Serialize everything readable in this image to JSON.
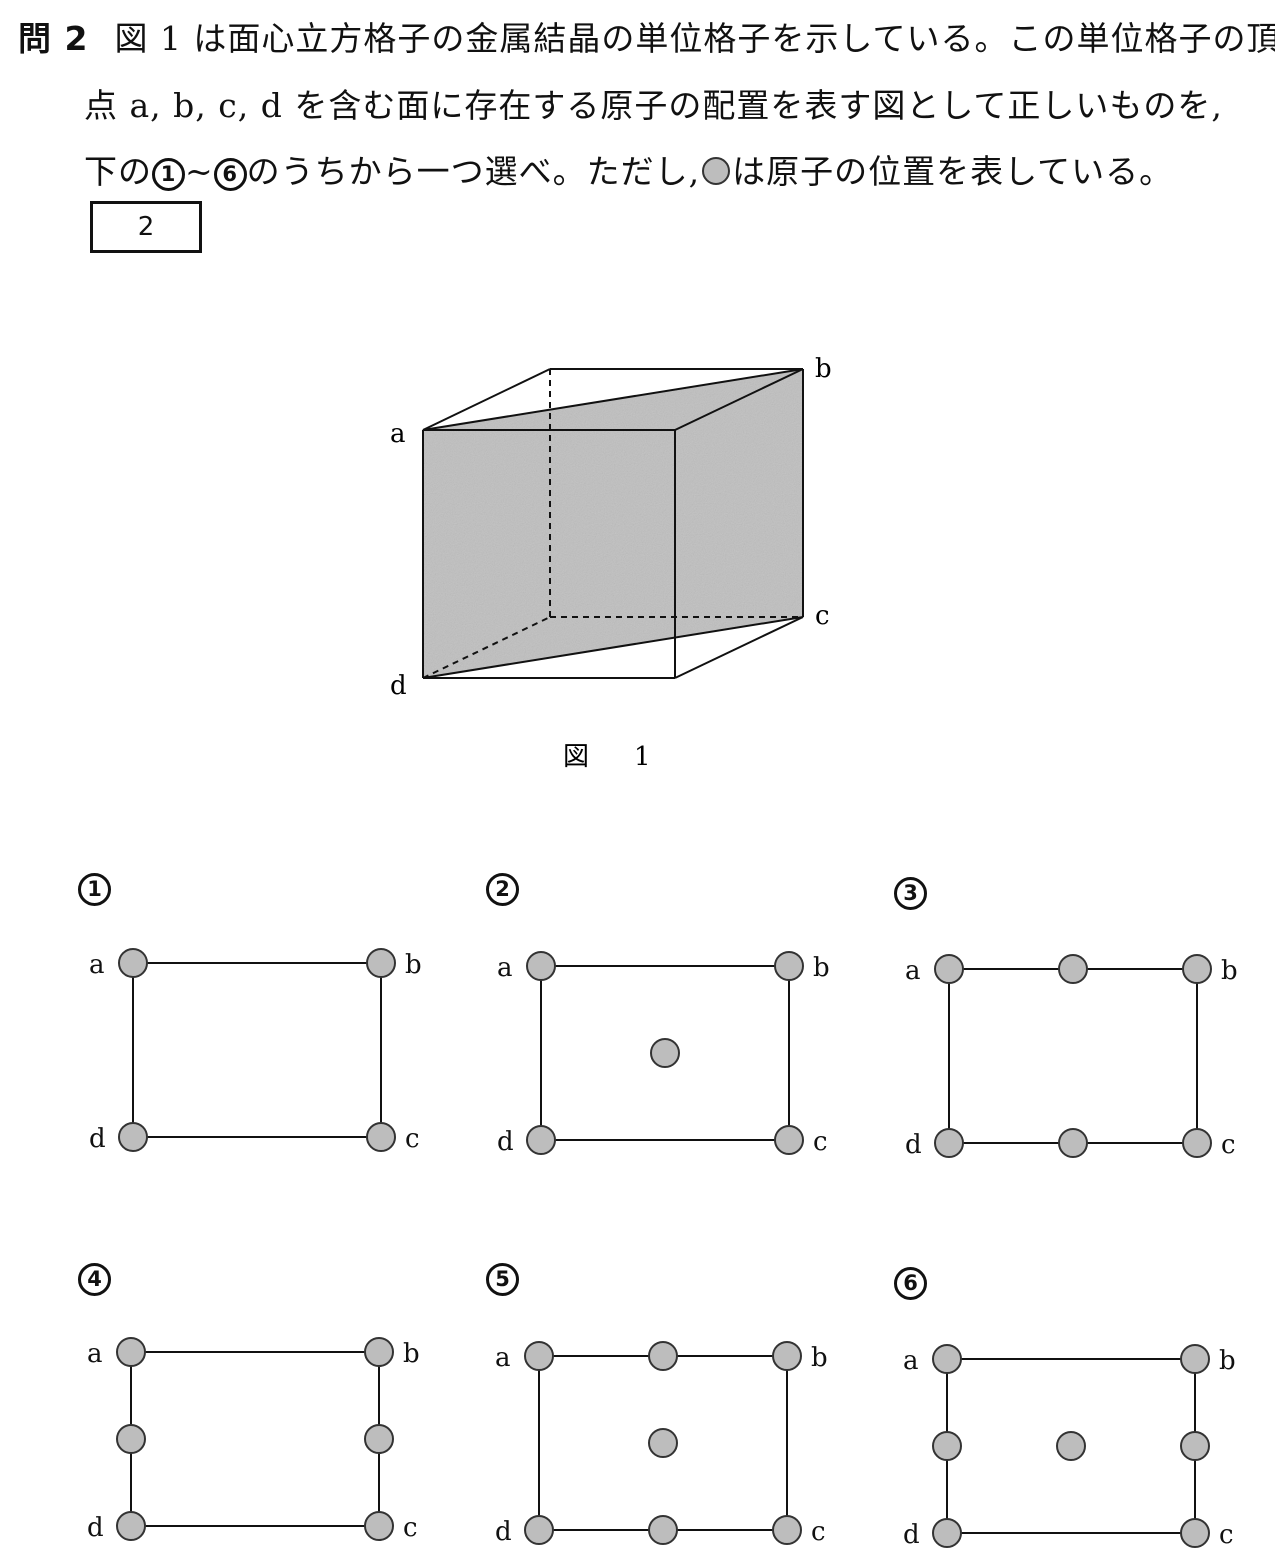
{
  "question": {
    "number": "問 2",
    "line1": "図 1 は面心立方格子の金属結晶の単位格子を示している。この単位格子の頂",
    "line2": "点 a, b, c, d を含む面に存在する原子の配置を表す図として正しいものを,",
    "line3_prefix": "下の",
    "range_start": "1",
    "range_tilde": "~",
    "range_end": "6",
    "line3_middle": "のうちから一つ選べ。ただし,",
    "line3_suffix": "は原子の位置を表している。",
    "answer_box": "2"
  },
  "figure": {
    "caption_label": "図",
    "caption_number": "1",
    "vertex_labels": {
      "a": "a",
      "b": "b",
      "c": "c",
      "d": "d"
    },
    "shade_color": "#bfbfbf"
  },
  "options": [
    {
      "number": "1",
      "a": "a",
      "b": "b",
      "c": "c",
      "d": "d",
      "edge_midpoints_horizontal": false,
      "edge_midpoints_vertical": false,
      "center": false
    },
    {
      "number": "2",
      "a": "a",
      "b": "b",
      "c": "c",
      "d": "d",
      "edge_midpoints_horizontal": false,
      "edge_midpoints_vertical": false,
      "center": true
    },
    {
      "number": "3",
      "a": "a",
      "b": "b",
      "c": "c",
      "d": "d",
      "edge_midpoints_horizontal": true,
      "edge_midpoints_vertical": false,
      "center": false
    },
    {
      "number": "4",
      "a": "a",
      "b": "b",
      "c": "c",
      "d": "d",
      "edge_midpoints_horizontal": false,
      "edge_midpoints_vertical": true,
      "center": false
    },
    {
      "number": "5",
      "a": "a",
      "b": "b",
      "c": "c",
      "d": "d",
      "edge_midpoints_horizontal": true,
      "edge_midpoints_vertical": false,
      "center": true
    },
    {
      "number": "6",
      "a": "a",
      "b": "b",
      "c": "c",
      "d": "d",
      "edge_midpoints_horizontal": false,
      "edge_midpoints_vertical": true,
      "center": true
    }
  ],
  "colors": {
    "atom_fill": "#bdbdbd",
    "line": "#111111"
  }
}
